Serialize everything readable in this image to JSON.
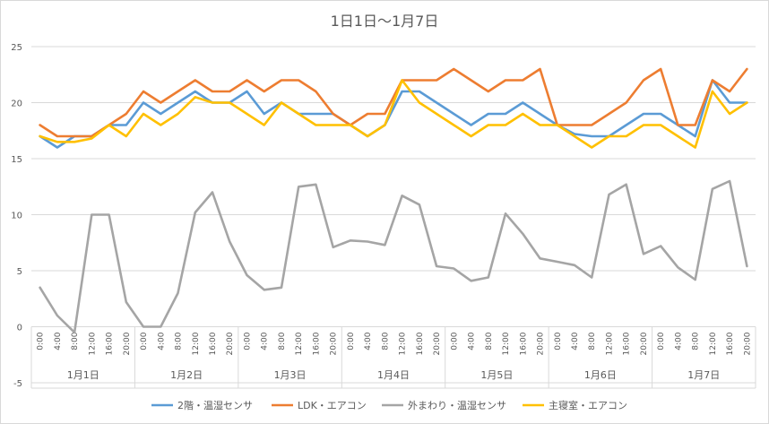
{
  "chart_data": {
    "type": "line",
    "title": "1日1日〜1月7日",
    "ylim": [
      -5,
      25
    ],
    "yticks": [
      -5,
      0,
      5,
      10,
      15,
      20,
      25
    ],
    "grid": true,
    "legend_position": "bottom",
    "hour_labels": [
      "0:00",
      "4:00",
      "8:00",
      "12:00",
      "16:00",
      "20:00"
    ],
    "days": [
      "1月1日",
      "1月2日",
      "1月3日",
      "1月4日",
      "1月5日",
      "1月6日",
      "1月7日"
    ],
    "series": [
      {
        "name": "2階・温湿センサ",
        "color": "#5B9BD5",
        "values": [
          17,
          16,
          17,
          17,
          18,
          18,
          20,
          19,
          20,
          21,
          20,
          20,
          21,
          19,
          20,
          19,
          19,
          19,
          18,
          17,
          18,
          21,
          21,
          20,
          19,
          18,
          19,
          19,
          20,
          19,
          18,
          17.2,
          17,
          17,
          18,
          19,
          19,
          18,
          17,
          22,
          20,
          20
        ]
      },
      {
        "name": "LDK・エアコン",
        "color": "#ED7D31",
        "values": [
          18,
          17,
          17,
          17,
          18,
          19,
          21,
          20,
          21,
          22,
          21,
          21,
          22,
          21,
          22,
          22,
          21,
          19,
          18,
          19,
          19,
          22,
          22,
          22,
          23,
          22,
          21,
          22,
          22,
          23,
          18,
          18,
          18,
          19,
          20,
          22,
          23,
          18,
          18,
          22,
          21,
          23
        ]
      },
      {
        "name": "外まわり・温湿センサ",
        "color": "#A5A5A5",
        "values": [
          3.5,
          1,
          -0.5,
          10,
          10,
          2.2,
          0,
          0,
          3,
          10.2,
          12,
          7.6,
          4.6,
          3.3,
          3.5,
          12.5,
          12.7,
          7.1,
          7.7,
          7.6,
          7.3,
          11.7,
          10.9,
          5.4,
          5.2,
          4.1,
          4.4,
          10.1,
          8.3,
          6.1,
          5.8,
          5.5,
          4.4,
          11.8,
          12.7,
          6.5,
          7.2,
          5.3,
          4.2,
          12.3,
          13,
          5.4
        ]
      },
      {
        "name": "主寝室・エアコン",
        "color": "#FFC000",
        "values": [
          17,
          16.5,
          16.5,
          16.8,
          18,
          17,
          19,
          18,
          19,
          20.5,
          20,
          20,
          19,
          18,
          20,
          19,
          18,
          18,
          18,
          17,
          18,
          22,
          20,
          19,
          18,
          17,
          18,
          18,
          19,
          18,
          18,
          17,
          16,
          17,
          17,
          18,
          18,
          17,
          16,
          21,
          19,
          20
        ]
      }
    ]
  }
}
